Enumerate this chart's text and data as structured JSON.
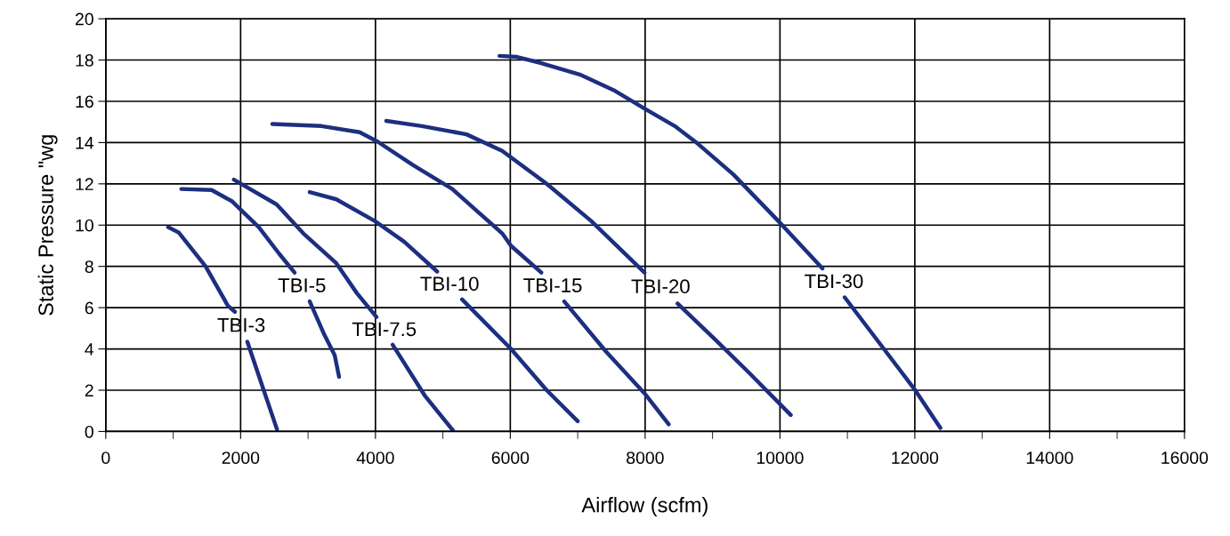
{
  "chart_data": {
    "type": "line",
    "xlabel": "Airflow (scfm)",
    "ylabel": "Static Pressure \"wg",
    "xlim": [
      0,
      16000
    ],
    "ylim": [
      0,
      20
    ],
    "xticks": [
      0,
      {
        "value": 1000,
        "label": null
      },
      2000,
      {
        "value": 3000,
        "label": null
      },
      4000,
      {
        "value": 5000,
        "label": null
      },
      6000,
      {
        "value": 7000,
        "label": null
      },
      8000,
      {
        "value": 9000,
        "label": null
      },
      10000,
      {
        "value": 11000,
        "label": null
      },
      12000,
      {
        "value": 13000,
        "label": null
      },
      14000,
      {
        "value": 15000,
        "label": null
      },
      16000
    ],
    "yticks": [
      0,
      2,
      4,
      6,
      8,
      10,
      12,
      14,
      16,
      18,
      20
    ],
    "grid": true,
    "legend": false,
    "marker": "none",
    "line_style": "solid",
    "series": [
      {
        "name": "TBI-3",
        "color": "#1c2f80",
        "x": [
          925,
          1080,
          1480,
          1810,
          1915,
          2010,
          2100,
          2270,
          2540
        ],
        "values": [
          9.9,
          9.65,
          8.0,
          6.1,
          5.8,
          null,
          4.35,
          2.7,
          0.1
        ]
      },
      {
        "name": "TBI-5",
        "color": "#1c2f80",
        "x": [
          1120,
          1570,
          1875,
          2270,
          2575,
          2800,
          2910,
          3025,
          3240,
          3395,
          3460
        ],
        "values": [
          11.75,
          11.7,
          11.15,
          9.9,
          8.6,
          7.7,
          null,
          6.3,
          4.7,
          3.7,
          2.65
        ]
      },
      {
        "name": "TBI-7.5",
        "color": "#1c2f80",
        "x": [
          1900,
          2535,
          2930,
          3420,
          3725,
          4015,
          4130,
          4255,
          4740,
          5150
        ],
        "values": [
          12.2,
          11.0,
          9.6,
          8.15,
          6.7,
          5.55,
          null,
          4.2,
          1.7,
          0.05
        ]
      },
      {
        "name": "TBI-10",
        "color": "#1c2f80",
        "x": [
          3025,
          3420,
          3990,
          4425,
          4915,
          5100,
          5285,
          6010,
          6540,
          7000
        ],
        "values": [
          11.6,
          11.25,
          10.2,
          9.2,
          7.75,
          null,
          6.4,
          4.0,
          2.0,
          0.5
        ]
      },
      {
        "name": "TBI-15",
        "color": "#1c2f80",
        "x": [
          2470,
          3200,
          3765,
          4030,
          4560,
          5140,
          5535,
          5880,
          6010,
          6460,
          6630,
          6800,
          7425,
          7990,
          8350
        ],
        "values": [
          14.9,
          14.8,
          14.5,
          14.05,
          12.9,
          11.75,
          10.6,
          9.6,
          9.0,
          7.7,
          null,
          6.3,
          3.85,
          1.85,
          0.35
        ]
      },
      {
        "name": "TBI-20",
        "color": "#1c2f80",
        "x": [
          4160,
          4690,
          5350,
          5880,
          6540,
          7200,
          7990,
          8230,
          8480,
          9010,
          9540,
          10160
        ],
        "values": [
          15.05,
          14.8,
          14.4,
          13.6,
          12.0,
          10.2,
          7.7,
          null,
          6.2,
          4.55,
          2.85,
          0.8
        ]
      },
      {
        "name": "TBI-30",
        "color": "#1c2f80",
        "x": [
          5840,
          6100,
          6460,
          7030,
          7555,
          7990,
          8440,
          8780,
          9310,
          9975,
          10630,
          10800,
          10960,
          12010,
          12380
        ],
        "values": [
          18.2,
          18.15,
          17.85,
          17.3,
          16.5,
          15.65,
          14.8,
          13.95,
          12.45,
          10.2,
          7.9,
          null,
          6.5,
          1.98,
          0.17
        ]
      }
    ]
  }
}
